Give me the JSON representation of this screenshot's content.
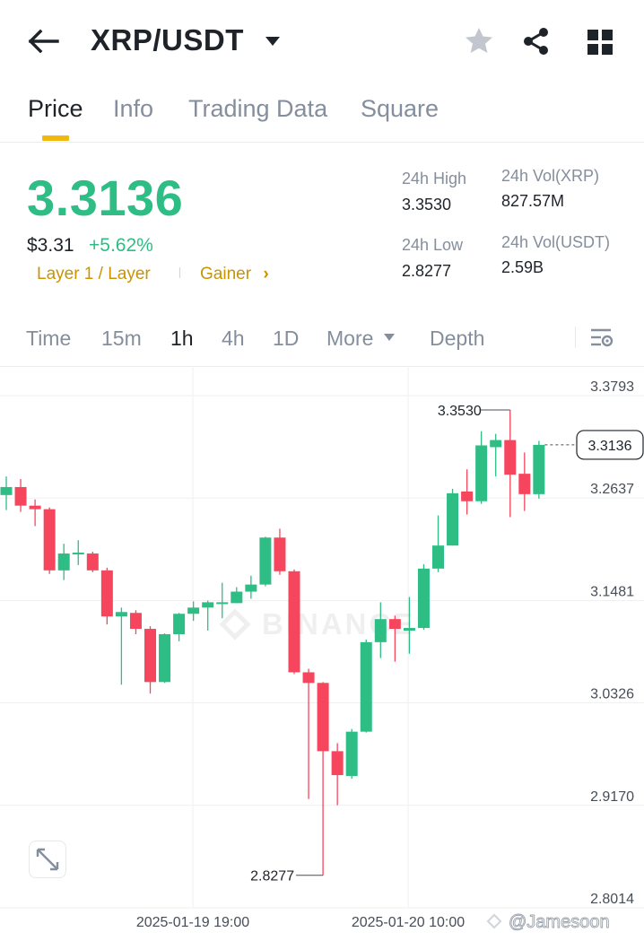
{
  "header": {
    "back_icon": "arrow-left-icon",
    "pair": "XRP/USDT",
    "caret_icon": "caret-down-icon",
    "favorite_icon": "star-icon",
    "share_icon": "share-icon",
    "menu_icon": "grid-icon"
  },
  "tabs": [
    {
      "label": "Price",
      "active": true
    },
    {
      "label": "Info",
      "active": false
    },
    {
      "label": "Trading Data",
      "active": false
    },
    {
      "label": "Square",
      "active": false
    }
  ],
  "ticker": {
    "last_price": "3.3136",
    "fiat_price": "$3.31",
    "change_pct": "+5.62%",
    "tag_category": "Layer 1 / Layer",
    "tag_gainer": "Gainer",
    "tag_gainer_chevron": "›",
    "stats": {
      "high_label": "24h High",
      "high_value": "3.3530",
      "low_label": "24h Low",
      "low_value": "2.8277",
      "vol_base_label": "24h Vol(XRP)",
      "vol_base_value": "827.57M",
      "vol_quote_label": "24h Vol(USDT)",
      "vol_quote_value": "2.59B"
    }
  },
  "timeframes": {
    "items": [
      {
        "label": "Time",
        "active": false
      },
      {
        "label": "15m",
        "active": false
      },
      {
        "label": "1h",
        "active": true
      },
      {
        "label": "4h",
        "active": false
      },
      {
        "label": "1D",
        "active": false
      }
    ],
    "more_label": "More",
    "depth_label": "Depth",
    "settings_icon": "chart-settings-icon"
  },
  "colors": {
    "up": "#2ebd85",
    "down": "#f6465d",
    "accent": "#f0b90b",
    "tag": "#c99400"
  },
  "chart_data": {
    "type": "candlestick",
    "interval": "1h",
    "y_ticks": [
      "3.3793",
      "3.2637",
      "3.1481",
      "3.0326",
      "2.9170",
      "2.8014"
    ],
    "x_ticks": [
      "2025-01-19 19:00",
      "2025-01-20 10:00"
    ],
    "last_price_label": "3.3136",
    "high_marker": "3.3530",
    "low_marker": "2.8277",
    "ylim": [
      2.8014,
      3.3793
    ],
    "watermark": "BINANCE",
    "candles": [
      {
        "o": 3.257,
        "h": 3.278,
        "l": 3.24,
        "c": 3.266
      },
      {
        "o": 3.266,
        "h": 3.275,
        "l": 3.238,
        "c": 3.245
      },
      {
        "o": 3.245,
        "h": 3.252,
        "l": 3.222,
        "c": 3.241
      },
      {
        "o": 3.241,
        "h": 3.243,
        "l": 3.168,
        "c": 3.172
      },
      {
        "o": 3.172,
        "h": 3.202,
        "l": 3.161,
        "c": 3.191
      },
      {
        "o": 3.191,
        "h": 3.206,
        "l": 3.178,
        "c": 3.192
      },
      {
        "o": 3.191,
        "h": 3.193,
        "l": 3.17,
        "c": 3.172
      },
      {
        "o": 3.172,
        "h": 3.175,
        "l": 3.111,
        "c": 3.12
      },
      {
        "o": 3.12,
        "h": 3.13,
        "l": 3.043,
        "c": 3.125
      },
      {
        "o": 3.124,
        "h": 3.127,
        "l": 3.1,
        "c": 3.106
      },
      {
        "o": 3.106,
        "h": 3.109,
        "l": 3.033,
        "c": 3.046
      },
      {
        "o": 3.046,
        "h": 3.101,
        "l": 3.045,
        "c": 3.1
      },
      {
        "o": 3.1,
        "h": 3.124,
        "l": 3.092,
        "c": 3.123
      },
      {
        "o": 3.123,
        "h": 3.137,
        "l": 3.115,
        "c": 3.13
      },
      {
        "o": 3.13,
        "h": 3.138,
        "l": 3.104,
        "c": 3.136
      },
      {
        "o": 3.136,
        "h": 3.158,
        "l": 3.118,
        "c": 3.136
      },
      {
        "o": 3.135,
        "h": 3.153,
        "l": 3.135,
        "c": 3.148
      },
      {
        "o": 3.148,
        "h": 3.166,
        "l": 3.14,
        "c": 3.156
      },
      {
        "o": 3.156,
        "h": 3.21,
        "l": 3.154,
        "c": 3.209
      },
      {
        "o": 3.209,
        "h": 3.219,
        "l": 3.167,
        "c": 3.171
      },
      {
        "o": 3.171,
        "h": 3.173,
        "l": 3.055,
        "c": 3.057
      },
      {
        "o": 3.057,
        "h": 3.061,
        "l": 2.914,
        "c": 3.045
      },
      {
        "o": 3.045,
        "h": 3.046,
        "l": 2.828,
        "c": 2.968
      },
      {
        "o": 2.968,
        "h": 2.977,
        "l": 2.907,
        "c": 2.941
      },
      {
        "o": 2.94,
        "h": 2.993,
        "l": 2.937,
        "c": 2.99
      },
      {
        "o": 2.99,
        "h": 3.094,
        "l": 2.989,
        "c": 3.091
      },
      {
        "o": 3.091,
        "h": 3.136,
        "l": 3.073,
        "c": 3.117
      },
      {
        "o": 3.117,
        "h": 3.121,
        "l": 3.069,
        "c": 3.106
      },
      {
        "o": 3.104,
        "h": 3.142,
        "l": 3.078,
        "c": 3.107
      },
      {
        "o": 3.107,
        "h": 3.179,
        "l": 3.105,
        "c": 3.174
      },
      {
        "o": 3.174,
        "h": 3.234,
        "l": 3.17,
        "c": 3.2
      },
      {
        "o": 3.2,
        "h": 3.264,
        "l": 3.2,
        "c": 3.259
      },
      {
        "o": 3.261,
        "h": 3.286,
        "l": 3.235,
        "c": 3.25
      },
      {
        "o": 3.25,
        "h": 3.329,
        "l": 3.247,
        "c": 3.313
      },
      {
        "o": 3.311,
        "h": 3.326,
        "l": 3.278,
        "c": 3.319
      },
      {
        "o": 3.319,
        "h": 3.353,
        "l": 3.232,
        "c": 3.28
      },
      {
        "o": 3.281,
        "h": 3.305,
        "l": 3.239,
        "c": 3.258
      },
      {
        "o": 3.258,
        "h": 3.318,
        "l": 3.253,
        "c": 3.3136
      }
    ]
  },
  "footer": {
    "expand_icon": "expand-icon",
    "watermark_handle": "@Jamesoon"
  }
}
